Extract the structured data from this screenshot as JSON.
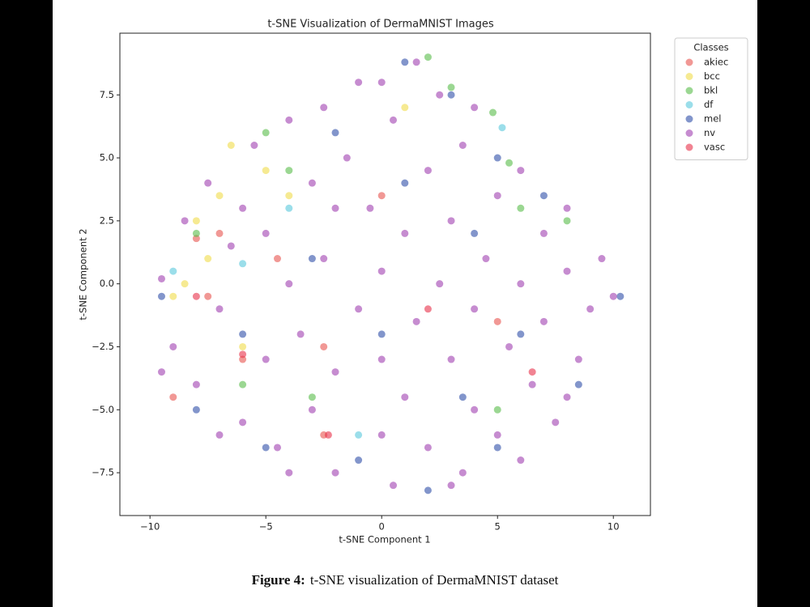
{
  "chart_data": {
    "type": "scatter",
    "title": "t-SNE Visualization of DermaMNIST Images",
    "x_label": "t-SNE Component 1",
    "y_label": "t-SNE Component 2",
    "xlim": [
      -11.3,
      11.6
    ],
    "ylim": [
      -9.2,
      9.95
    ],
    "xticks": [
      {
        "value": -10,
        "label": "−10"
      },
      {
        "value": -5,
        "label": "−5"
      },
      0,
      5,
      10
    ],
    "yticks": [
      {
        "value": -7.5,
        "label": "−7.5"
      },
      {
        "value": -5,
        "label": "−5.0"
      },
      {
        "value": -2.5,
        "label": "−2.5"
      },
      {
        "value": 0,
        "label": "0.0"
      },
      {
        "value": 2.5,
        "label": "2.5"
      },
      {
        "value": 5,
        "label": "5.0"
      },
      {
        "value": 7.5,
        "label": "7.5"
      }
    ],
    "grid": false,
    "legend": "outside-upper-right",
    "legend_title": "Classes",
    "series": [
      {
        "name": "akiec",
        "color": "#e8534f",
        "x": [
          -8,
          -7.5,
          -6,
          -2.5,
          -9,
          -7,
          -2.5,
          -4.5,
          5,
          0
        ],
        "values": [
          1.8,
          -0.5,
          -3,
          -6,
          -4.5,
          2,
          -2.5,
          1,
          -1.5,
          3.5
        ]
      },
      {
        "name": "bcc",
        "color": "#f0dc4a",
        "x": [
          -6.5,
          -7,
          -8,
          -7.5,
          -5,
          -6,
          1,
          -4,
          -8.5,
          -9
        ],
        "values": [
          5.5,
          3.5,
          2.5,
          1,
          4.5,
          -2.5,
          7,
          3.5,
          0,
          -0.5
        ]
      },
      {
        "name": "bkl",
        "color": "#58bd4a",
        "x": [
          2,
          4.8,
          5.5,
          6,
          -4,
          -5,
          3,
          -3,
          8,
          -6,
          5,
          -8
        ],
        "values": [
          9,
          6.8,
          4.8,
          3,
          4.5,
          6,
          7.8,
          -4.5,
          2.5,
          -4,
          -5,
          2
        ]
      },
      {
        "name": "df",
        "color": "#58c8dc",
        "x": [
          5.2,
          -6,
          -1,
          -9,
          -4
        ],
        "values": [
          6.2,
          0.8,
          -6,
          0.5,
          3
        ]
      },
      {
        "name": "mel",
        "color": "#2f4fa8",
        "x": [
          1,
          3,
          5,
          7,
          10.3,
          8.5,
          5,
          2,
          -1,
          -5,
          -8,
          -9.5,
          -3,
          0,
          4,
          -2,
          6,
          3.5,
          -6,
          1
        ],
        "values": [
          8.8,
          7.5,
          5,
          3.5,
          -0.5,
          -4,
          -6.5,
          -8.2,
          -7,
          -6.5,
          -5,
          -0.5,
          1,
          -2,
          2,
          6,
          -2,
          -4.5,
          -2,
          4
        ]
      },
      {
        "name": "nv",
        "color": "#a03fb0",
        "x": [
          -9.5,
          -9,
          -8.5,
          -8,
          -7.5,
          -7,
          -6.5,
          -6,
          -5.5,
          -5,
          -5,
          -4.5,
          -4,
          -4,
          -3.5,
          -3,
          -3,
          -2.5,
          -2.5,
          -2,
          -2,
          -1.5,
          -1,
          -1,
          -0.5,
          0,
          0,
          0,
          0.5,
          0.5,
          1,
          1,
          1.5,
          1.5,
          2,
          2,
          2.5,
          2.5,
          3,
          3,
          3.5,
          3.5,
          4,
          4,
          4.5,
          5,
          5,
          5.5,
          6,
          6,
          6.5,
          7,
          7,
          7.5,
          8,
          8,
          8.5,
          9,
          9.5,
          10,
          -7,
          -9.5,
          -2,
          3,
          6,
          8,
          -4,
          0,
          4,
          -6
        ],
        "values": [
          0.2,
          -2.5,
          2.5,
          -4,
          4,
          -1,
          1.5,
          -5.5,
          5.5,
          -3,
          2,
          -6.5,
          6.5,
          0,
          -2,
          4,
          -5,
          7,
          1,
          -3.5,
          -7.5,
          5,
          -1,
          8,
          3,
          -6,
          0.5,
          -3,
          6.5,
          -8,
          2,
          -4.5,
          8.8,
          -1.5,
          4.5,
          -6.5,
          0,
          7.5,
          -3,
          2.5,
          -7.5,
          5.5,
          -1,
          -5,
          1,
          3.5,
          -6,
          -2.5,
          0,
          4.5,
          -4,
          2,
          -1.5,
          -5.5,
          0.5,
          3,
          -3,
          -1,
          1,
          -0.5,
          -6,
          -3.5,
          3,
          -8,
          -7,
          -4.5,
          -7.5,
          8,
          7,
          3
        ]
      },
      {
        "name": "vasc",
        "color": "#e8304a",
        "x": [
          -8,
          -2.3,
          -6,
          6.5,
          2
        ],
        "values": [
          -0.5,
          -6,
          -2.8,
          -3.5,
          -1
        ]
      }
    ]
  },
  "caption": {
    "label": "Figure 4:",
    "text": "t-SNE visualization of DermaMNIST dataset"
  }
}
